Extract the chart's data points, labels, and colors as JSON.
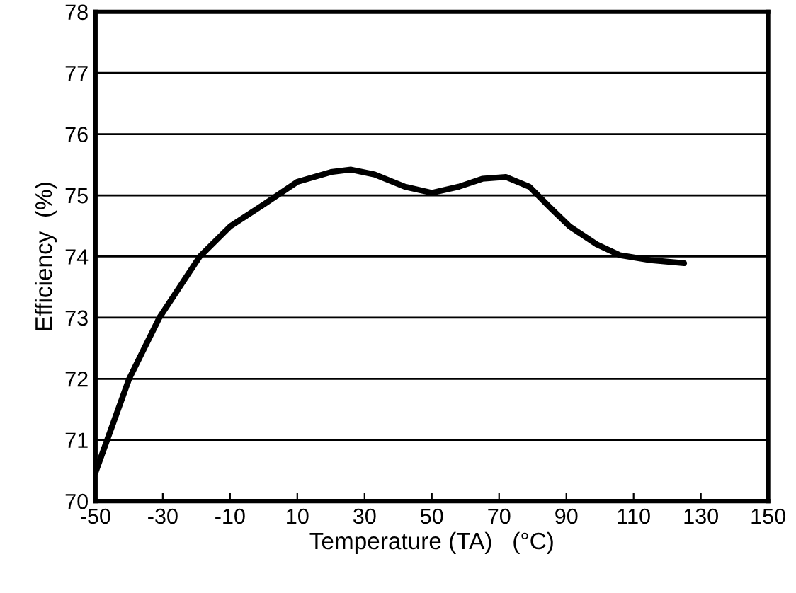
{
  "chart_data": {
    "type": "line",
    "xlabel": "Temperature (TA)   (°C)",
    "ylabel": "Efficiency  (%)",
    "x": [
      -50,
      -40,
      -31,
      -19,
      -10,
      0,
      10,
      20,
      26,
      33,
      42,
      50,
      58,
      65,
      72,
      79,
      85,
      91,
      99,
      106,
      115,
      125
    ],
    "series": [
      {
        "color": "#000000",
        "values": [
          70.47,
          72.0,
          73.0,
          74.0,
          74.49,
          74.85,
          75.22,
          75.38,
          75.42,
          75.34,
          75.14,
          75.04,
          75.14,
          75.27,
          75.3,
          75.14,
          74.81,
          74.49,
          74.2,
          74.02,
          73.94,
          73.89
        ]
      }
    ],
    "xlim": [
      -50,
      150
    ],
    "xticks": [
      -50,
      -30,
      -10,
      10,
      30,
      50,
      70,
      90,
      110,
      130,
      150
    ],
    "ylim": [
      70,
      78
    ],
    "yticks": [
      70,
      71,
      72,
      73,
      74,
      75,
      76,
      77,
      78
    ],
    "grid": "y",
    "marker": "none",
    "line_style": "solid"
  }
}
